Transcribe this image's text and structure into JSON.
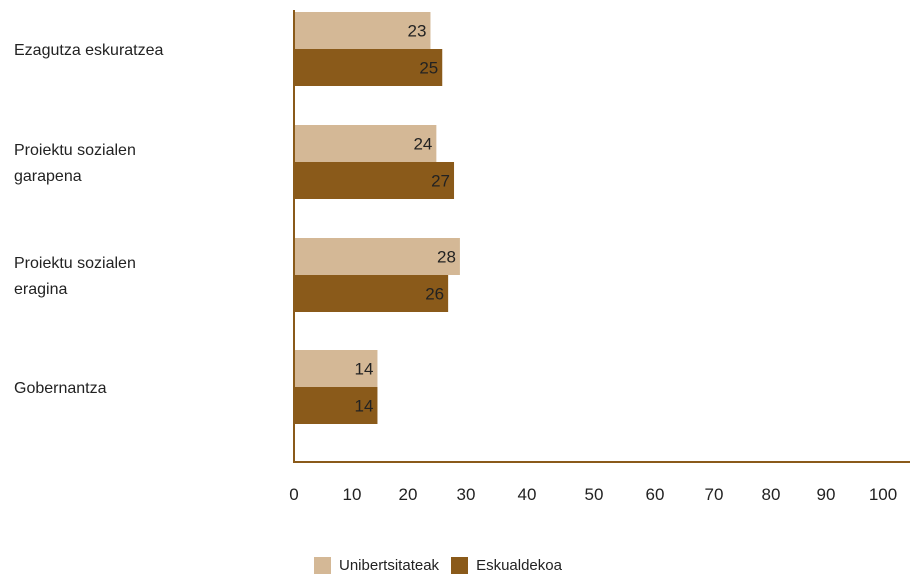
{
  "chart_data": {
    "type": "bar",
    "orientation": "horizontal",
    "categories": [
      [
        "Ezagutza eskuratzea"
      ],
      [
        "Proiektu sozialen",
        "garapena"
      ],
      [
        "Proiektu sozialen",
        "eragina"
      ],
      [
        "Gobernantza"
      ]
    ],
    "series": [
      {
        "name": "Unibertsitateak",
        "color": "#d4b896",
        "values": [
          23,
          24,
          28,
          14
        ]
      },
      {
        "name": "Eskualdekoa",
        "color": "#8a5a1a",
        "values": [
          25,
          27,
          26,
          14
        ]
      }
    ],
    "xlim": [
      0,
      100
    ],
    "xticks": [
      "0",
      "10",
      "20",
      "30",
      "40",
      "50",
      "60",
      "70",
      "80",
      "90",
      "100"
    ],
    "axis_color": "#8a5a1a",
    "legend_position": "bottom"
  }
}
